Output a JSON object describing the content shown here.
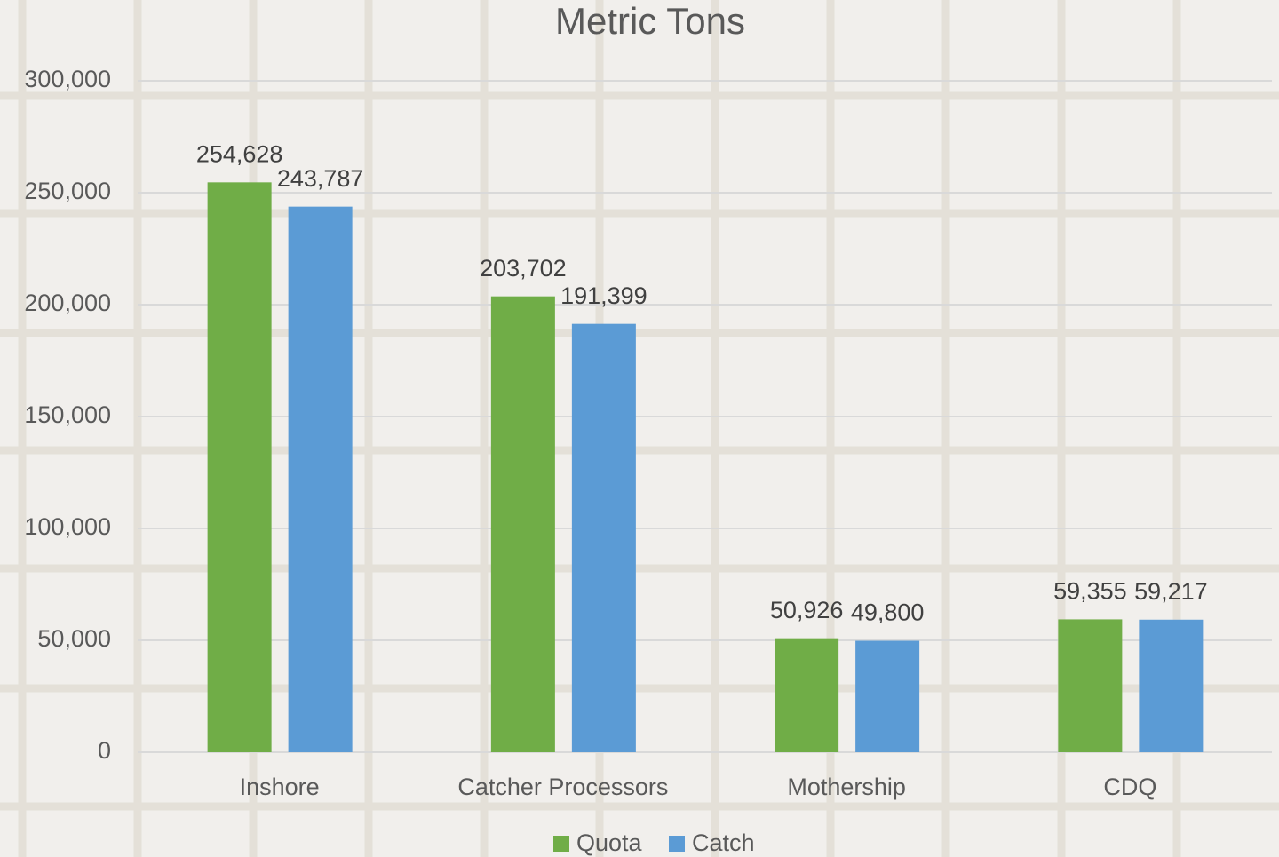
{
  "chart_data": {
    "type": "bar",
    "title": "Metric Tons",
    "categories": [
      "Inshore",
      "Catcher Processors",
      "Mothership",
      "CDQ"
    ],
    "series": [
      {
        "name": "Quota",
        "color": "#70ad47",
        "values": [
          254628,
          203702,
          50926,
          59355
        ],
        "value_labels": [
          "254,628",
          "203,702",
          "50,926",
          "59,355"
        ]
      },
      {
        "name": "Catch",
        "color": "#5b9bd5",
        "values": [
          243787,
          191399,
          49800,
          59217
        ],
        "value_labels": [
          "243,787",
          "191,399",
          "49,800",
          "59,217"
        ]
      }
    ],
    "ylim": [
      0,
      300000
    ],
    "yticks": [
      0,
      {
        "value": 50000,
        "label": "50,000"
      },
      {
        "value": 100000,
        "label": "100,000"
      },
      {
        "value": 150000,
        "label": "150,000"
      },
      {
        "value": 200000,
        "label": "200,000"
      },
      {
        "value": 250000,
        "label": "250,000"
      },
      {
        "value": 300000,
        "label": "300,000"
      }
    ],
    "grid": true,
    "legend": "bottom"
  }
}
